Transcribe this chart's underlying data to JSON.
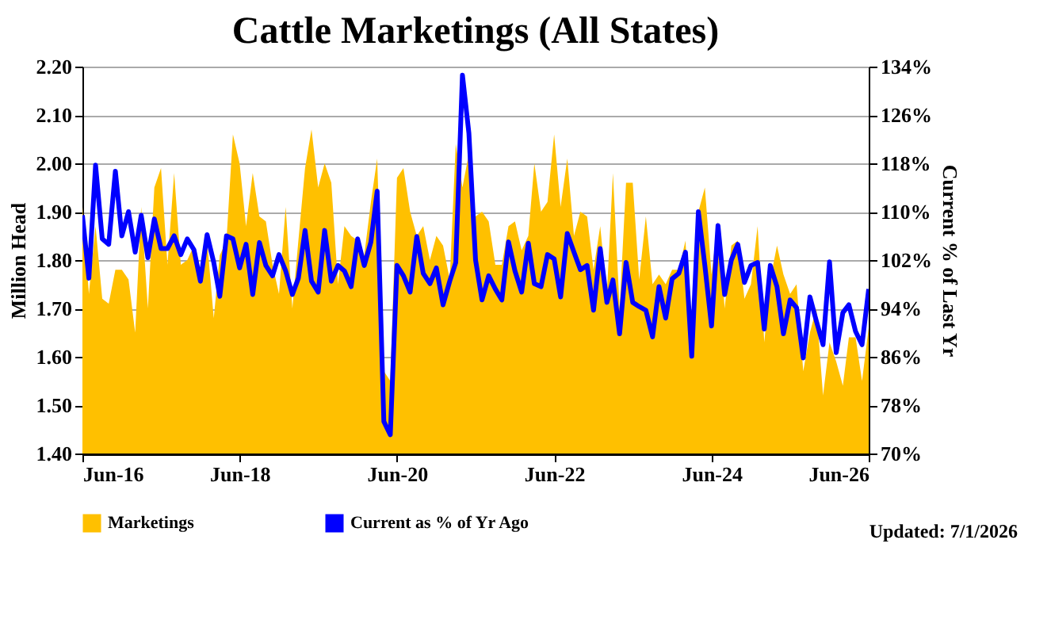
{
  "chart_data": {
    "type": "area",
    "title": "Cattle Marketings (All States)",
    "ylabel": "Million Head",
    "y2label": "Current % of Last Yr",
    "annotations": [
      "Updated: 7/1/2026"
    ],
    "x": [
      "2016-06",
      "2016-07",
      "2016-08",
      "2016-09",
      "2016-10",
      "2016-11",
      "2016-12",
      "2017-01",
      "2017-02",
      "2017-03",
      "2017-04",
      "2017-05",
      "2017-06",
      "2017-07",
      "2017-08",
      "2017-09",
      "2017-10",
      "2017-11",
      "2017-12",
      "2018-01",
      "2018-02",
      "2018-03",
      "2018-04",
      "2018-05",
      "2018-06",
      "2018-07",
      "2018-08",
      "2018-09",
      "2018-10",
      "2018-11",
      "2018-12",
      "2019-01",
      "2019-02",
      "2019-03",
      "2019-04",
      "2019-05",
      "2019-06",
      "2019-07",
      "2019-08",
      "2019-09",
      "2019-10",
      "2019-11",
      "2019-12",
      "2020-01",
      "2020-02",
      "2020-03",
      "2020-04",
      "2020-05",
      "2020-06",
      "2020-07",
      "2020-08",
      "2020-09",
      "2020-10",
      "2020-11",
      "2020-12",
      "2021-01",
      "2021-02",
      "2021-03",
      "2021-04",
      "2021-05",
      "2021-06",
      "2021-07",
      "2021-08",
      "2021-09",
      "2021-10",
      "2021-11",
      "2021-12",
      "2022-01",
      "2022-02",
      "2022-03",
      "2022-04",
      "2022-05",
      "2022-06",
      "2022-07",
      "2022-08",
      "2022-09",
      "2022-10",
      "2022-11",
      "2022-12",
      "2023-01",
      "2023-02",
      "2023-03",
      "2023-04",
      "2023-05",
      "2023-06",
      "2023-07",
      "2023-08",
      "2023-09",
      "2023-10",
      "2023-11",
      "2023-12",
      "2024-01",
      "2024-02",
      "2024-03",
      "2024-04",
      "2024-05",
      "2024-06",
      "2024-07",
      "2024-08",
      "2024-09",
      "2024-10",
      "2024-11",
      "2024-12",
      "2025-01",
      "2025-02",
      "2025-03",
      "2025-04",
      "2025-05",
      "2025-06",
      "2025-07",
      "2025-08",
      "2025-09",
      "2025-10",
      "2025-11",
      "2025-12",
      "2026-01",
      "2026-02",
      "2026-03",
      "2026-04",
      "2026-05",
      "2026-06"
    ],
    "xlim": [
      "2016-06",
      "2026-06"
    ],
    "xticks": [
      {
        "value": "2016-06",
        "label": "Jun-16"
      },
      {
        "value": "2018-06",
        "label": "Jun-18"
      },
      {
        "value": "2020-06",
        "label": "Jun-20"
      },
      {
        "value": "2022-06",
        "label": "Jun-22"
      },
      {
        "value": "2024-06",
        "label": "Jun-24"
      },
      {
        "value": "2026-06",
        "label": "Jun-26"
      }
    ],
    "ylim": [
      1.4,
      2.2
    ],
    "yticks": [
      {
        "value": 1.4,
        "label": "1.40"
      },
      {
        "value": 1.5,
        "label": "1.50"
      },
      {
        "value": 1.6,
        "label": "1.60"
      },
      {
        "value": 1.7,
        "label": "1.70"
      },
      {
        "value": 1.8,
        "label": "1.80"
      },
      {
        "value": 1.9,
        "label": "1.90"
      },
      {
        "value": 2.0,
        "label": "2.00"
      },
      {
        "value": 2.1,
        "label": "2.10"
      },
      {
        "value": 2.2,
        "label": "2.20"
      }
    ],
    "y2lim": [
      70,
      134
    ],
    "y2ticks": [
      {
        "value": 70,
        "label": "70%"
      },
      {
        "value": 78,
        "label": "78%"
      },
      {
        "value": 86,
        "label": "86%"
      },
      {
        "value": 94,
        "label": "94%"
      },
      {
        "value": 102,
        "label": "102%"
      },
      {
        "value": 110,
        "label": "110%"
      },
      {
        "value": 118,
        "label": "118%"
      },
      {
        "value": 126,
        "label": "126%"
      },
      {
        "value": 134,
        "label": "134%"
      }
    ],
    "grid": "y",
    "legend": "bottom",
    "series": [
      {
        "name": "Marketings",
        "color": "#ffc000",
        "values": [
          1.91,
          1.73,
          1.87,
          1.72,
          1.71,
          1.78,
          1.78,
          1.76,
          1.65,
          1.91,
          1.7,
          1.95,
          1.99,
          1.79,
          1.98,
          1.79,
          1.8,
          1.83,
          1.77,
          1.84,
          1.68,
          1.81,
          1.84,
          2.06,
          2.0,
          1.87,
          1.98,
          1.89,
          1.88,
          1.79,
          1.73,
          1.91,
          1.7,
          1.84,
          1.99,
          2.07,
          1.95,
          2.0,
          1.96,
          1.75,
          1.87,
          1.85,
          1.84,
          1.81,
          1.92,
          2.01,
          1.57,
          1.55,
          1.97,
          1.99,
          1.9,
          1.85,
          1.87,
          1.8,
          1.85,
          1.83,
          1.76,
          2.04,
          1.95,
          2.02,
          1.89,
          1.9,
          1.88,
          1.79,
          1.79,
          1.87,
          1.88,
          1.82,
          1.85,
          2.0,
          1.9,
          1.92,
          2.06,
          1.91,
          2.01,
          1.85,
          1.9,
          1.89,
          1.78,
          1.87,
          1.73,
          1.98,
          1.7,
          1.96,
          1.96,
          1.76,
          1.89,
          1.75,
          1.77,
          1.75,
          1.78,
          1.78,
          1.84,
          1.6,
          1.9,
          1.95,
          1.77,
          1.88,
          1.7,
          1.83,
          1.84,
          1.72,
          1.75,
          1.87,
          1.63,
          1.76,
          1.83,
          1.77,
          1.73,
          1.75,
          1.57,
          1.65,
          1.7,
          1.52,
          1.63,
          1.59,
          1.54,
          1.64,
          1.64,
          1.55,
          1.66
        ]
      },
      {
        "name": "Current as % of Yr Ago",
        "type": "line",
        "axis": "y2",
        "color": "#0000ff",
        "values": [
          109.4,
          99,
          117.7,
          105.5,
          104.6,
          116.7,
          106,
          110,
          103.3,
          109.4,
          102.4,
          108.8,
          103.9,
          103.9,
          106,
          102.9,
          105.5,
          103.7,
          98.5,
          106.2,
          101.6,
          96,
          106,
          105.5,
          100.7,
          104.6,
          96.3,
          104.9,
          101.1,
          99.4,
          102.9,
          100.2,
          96.3,
          99,
          106.9,
          98.5,
          96.7,
          106.9,
          98.5,
          101.1,
          100.2,
          97.6,
          105.5,
          101.1,
          105,
          113.4,
          75.3,
          73.1,
          101.1,
          99.4,
          96.7,
          105.9,
          99.8,
          98.1,
          100.7,
          94.6,
          98.5,
          101.6,
          132.6,
          123,
          102,
          95.4,
          99.4,
          97.2,
          95.4,
          105,
          100.2,
          96.7,
          104.8,
          98.1,
          97.6,
          102.9,
          102.2,
          95.9,
          106.4,
          103.3,
          100.4,
          101.1,
          93.7,
          103.9,
          95,
          98.7,
          89.8,
          101.6,
          95,
          94.3,
          93.7,
          89.3,
          97.6,
          92.4,
          98.9,
          99.8,
          103.3,
          86.1,
          110,
          101.1,
          91.1,
          107.7,
          96.3,
          102,
          104.6,
          98.3,
          101.1,
          101.6,
          90.6,
          101.1,
          97.6,
          89.8,
          95.4,
          94.1,
          85.8,
          95.9,
          91.9,
          88,
          101.7,
          86.7,
          93.3,
          94.6,
          90.2,
          88,
          97.2
        ]
      }
    ]
  }
}
